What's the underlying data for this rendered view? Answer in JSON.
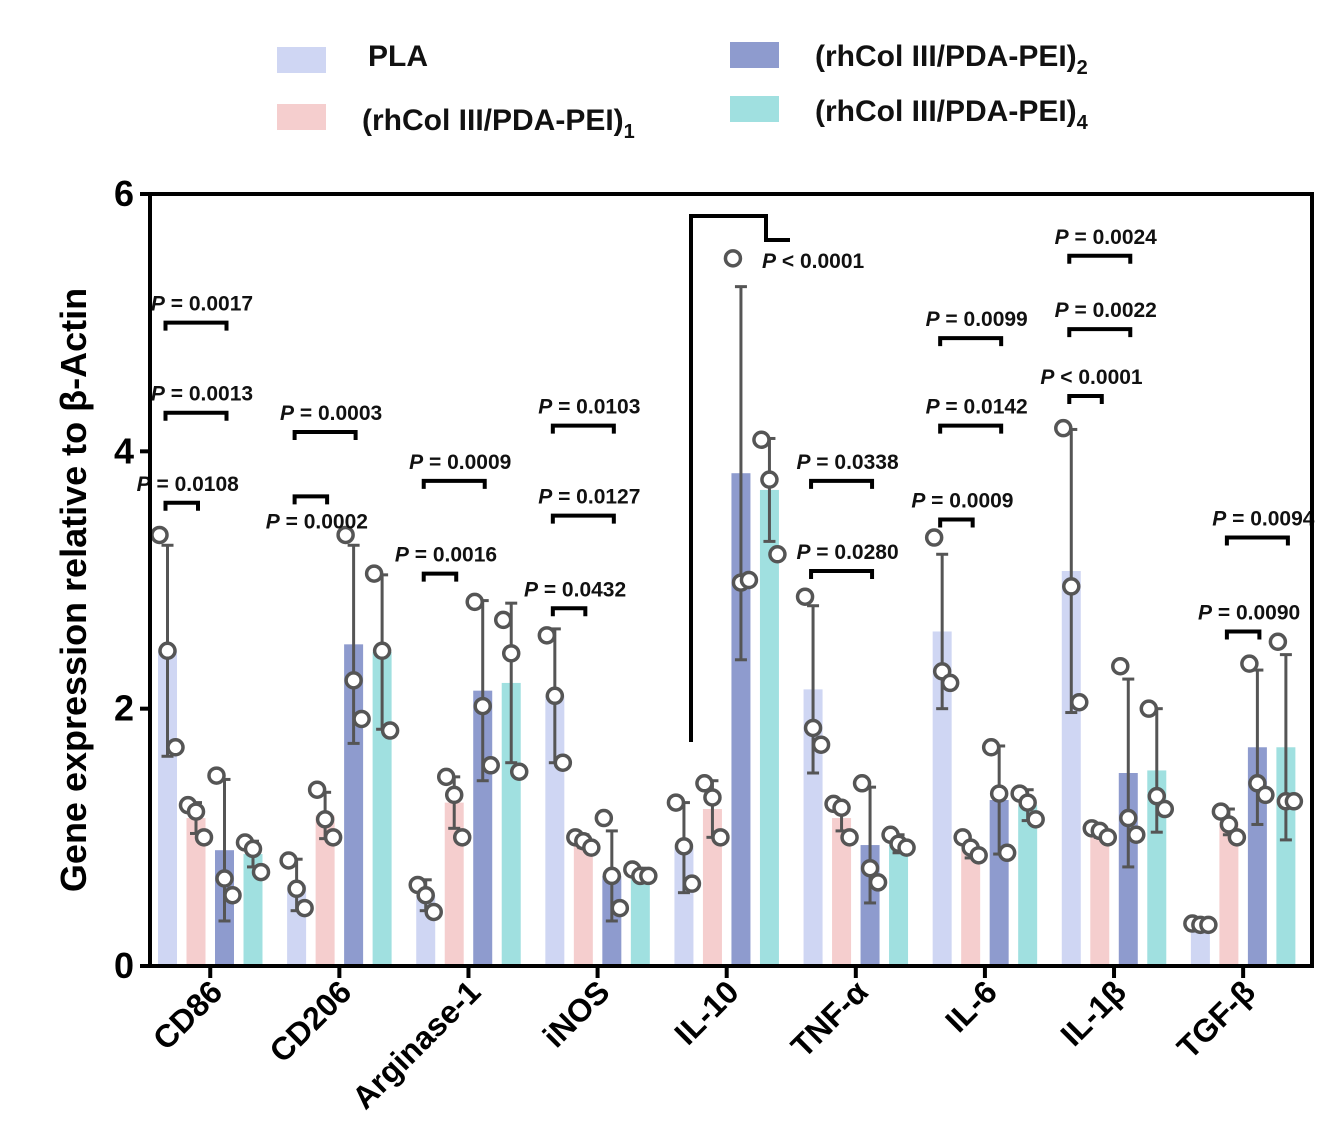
{
  "chart_data": {
    "type": "bar",
    "ylabel": "Gene expression relative to β-Actin",
    "xlabel": "",
    "ylim": [
      0,
      6
    ],
    "yticks": [
      0,
      2,
      4,
      6
    ],
    "legend_position": "top",
    "categories": [
      "CD86",
      "CD206",
      "Arginase-1",
      "iNOS",
      "IL-10",
      "TNF-α",
      "IL-6",
      "IL-1β",
      "TGF-β"
    ],
    "series": [
      {
        "name": "PLA",
        "legend_sub": "",
        "color": "#cfd6f3",
        "values": [
          2.45,
          0.63,
          0.55,
          2.1,
          0.92,
          2.15,
          2.6,
          3.07,
          0.32
        ],
        "errors": [
          0.82,
          0.2,
          0.12,
          0.52,
          0.35,
          0.65,
          0.6,
          1.1,
          0
        ],
        "points": [
          [
            3.35,
            2.45,
            1.7
          ],
          [
            0.82,
            0.6,
            0.45
          ],
          [
            0.63,
            0.55,
            0.42
          ],
          [
            2.57,
            2.1,
            1.58
          ],
          [
            1.27,
            0.93,
            0.64
          ],
          [
            2.87,
            1.85,
            1.72
          ],
          [
            3.33,
            2.29,
            2.2
          ],
          [
            4.18,
            2.95,
            2.05
          ],
          [
            0.33,
            0.32,
            0.32
          ]
        ]
      },
      {
        "name": "(rhCol III/PDA-PEI)",
        "legend_sub": "1",
        "color": "#f5cece",
        "values": [
          1.15,
          1.17,
          1.27,
          0.97,
          1.22,
          1.15,
          0.9,
          1.03,
          1.12
        ],
        "errors": [
          0.12,
          0.18,
          0.2,
          0.05,
          0.22,
          0.1,
          0.06,
          0.03,
          0.1
        ],
        "points": [
          [
            1.25,
            1.2,
            1.0
          ],
          [
            1.37,
            1.14,
            1.0
          ],
          [
            1.47,
            1.33,
            1.0
          ],
          [
            1.0,
            0.97,
            0.92
          ],
          [
            1.42,
            1.31,
            1.0
          ],
          [
            1.26,
            1.23,
            1.0
          ],
          [
            1.0,
            0.92,
            0.86
          ],
          [
            1.07,
            1.05,
            1.0
          ],
          [
            1.2,
            1.1,
            1.0
          ]
        ]
      },
      {
        "name": "(rhCol III/PDA-PEI)",
        "legend_sub": "2",
        "color": "#8e9bce",
        "values": [
          0.9,
          2.5,
          2.14,
          0.7,
          3.83,
          0.94,
          1.29,
          1.5,
          1.7
        ],
        "errors": [
          0.55,
          0.77,
          0.7,
          0.35,
          1.45,
          0.45,
          0.42,
          0.73,
          0.6
        ],
        "points": [
          [
            1.48,
            0.68,
            0.55
          ],
          [
            3.35,
            2.22,
            1.92
          ],
          [
            2.83,
            2.02,
            1.56
          ],
          [
            1.15,
            0.7,
            0.45
          ],
          [
            5.5,
            2.98,
            3.0
          ],
          [
            1.42,
            0.76,
            0.65
          ],
          [
            1.7,
            1.34,
            0.88
          ],
          [
            2.33,
            1.15,
            1.02
          ],
          [
            2.35,
            1.42,
            1.33
          ]
        ]
      },
      {
        "name": "(rhCol III/PDA-PEI)",
        "legend_sub": "4",
        "color": "#a0e0e0",
        "values": [
          0.87,
          2.44,
          2.2,
          0.72,
          3.7,
          0.95,
          1.25,
          1.52,
          1.7
        ],
        "errors": [
          0.1,
          0.6,
          0.62,
          0.04,
          0.4,
          0.07,
          0.12,
          0.48,
          0.72
        ],
        "points": [
          [
            0.96,
            0.91,
            0.73
          ],
          [
            3.05,
            2.45,
            1.83
          ],
          [
            2.69,
            2.43,
            1.51
          ],
          [
            0.75,
            0.7,
            0.7
          ],
          [
            4.09,
            3.78,
            3.2
          ],
          [
            1.02,
            0.95,
            0.92
          ],
          [
            1.34,
            1.27,
            1.14
          ],
          [
            2.0,
            1.32,
            1.22
          ],
          [
            2.52,
            1.28,
            1.28
          ]
        ]
      }
    ],
    "significance": [
      {
        "category": 0,
        "from": 0,
        "to": 2,
        "y": 5.0,
        "text": "P = 0.0017"
      },
      {
        "category": 0,
        "from": 0,
        "to": 2,
        "y": 4.3,
        "text": "P = 0.0013"
      },
      {
        "category": 0,
        "from": 0,
        "to": 1,
        "y": 3.6,
        "text": "P = 0.0108"
      },
      {
        "category": 1,
        "from": 0,
        "to": 2,
        "y": 4.15,
        "text": "P = 0.0003"
      },
      {
        "category": 1,
        "from": 0,
        "to": 1,
        "y": 3.65,
        "text": "P = 0.0002",
        "below": true
      },
      {
        "category": 2,
        "from": 0,
        "to": 2,
        "y": 3.77,
        "text": "P = 0.0009"
      },
      {
        "category": 2,
        "from": 0,
        "to": 1,
        "y": 3.05,
        "text": "P = 0.0016"
      },
      {
        "category": 3,
        "from": 0,
        "to": 2,
        "y": 4.2,
        "text": "P = 0.0103"
      },
      {
        "category": 3,
        "from": 0,
        "to": 2,
        "y": 3.5,
        "text": "P = 0.0127"
      },
      {
        "category": 3,
        "from": 0,
        "to": 1,
        "y": 2.78,
        "text": "P = 0.0432"
      },
      {
        "category": 5,
        "from": 0,
        "to": 2,
        "y": 3.77,
        "text": "P = 0.0338"
      },
      {
        "category": 5,
        "from": 0,
        "to": 2,
        "y": 3.07,
        "text": "P = 0.0280"
      },
      {
        "category": 6,
        "from": 0,
        "to": 2,
        "y": 4.88,
        "text": "P = 0.0099"
      },
      {
        "category": 6,
        "from": 0,
        "to": 2,
        "y": 4.2,
        "text": "P = 0.0142"
      },
      {
        "category": 6,
        "from": 0,
        "to": 1,
        "y": 3.47,
        "text": "P = 0.0009"
      },
      {
        "category": 7,
        "from": 0,
        "to": 2,
        "y": 5.52,
        "text": "P = 0.0024"
      },
      {
        "category": 7,
        "from": 0,
        "to": 2,
        "y": 4.95,
        "text": "P = 0.0022"
      },
      {
        "category": 7,
        "from": 0,
        "to": 1,
        "y": 4.43,
        "text": "P < 0.0001"
      },
      {
        "category": 8,
        "from": 1,
        "to": 3,
        "y": 3.33,
        "text": "P = 0.0094"
      },
      {
        "category": 8,
        "from": 1,
        "to": 2,
        "y": 2.6,
        "text": "P = 0.0090"
      }
    ],
    "il10_significance": {
      "text": "P < 0.0001"
    }
  }
}
